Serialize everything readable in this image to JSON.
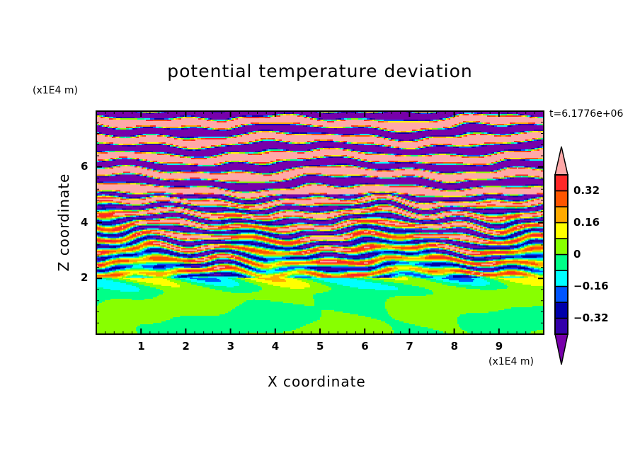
{
  "chart_data": {
    "type": "heatmap",
    "subtype": "filled-contour",
    "title": "potential temperature deviation",
    "xlabel": "X coordinate",
    "ylabel": "Z coordinate",
    "x_unit": "(x1E4 m)",
    "z_unit": "(x1E4 m)",
    "time_label": "t=6.1776e+06",
    "xlim": [
      0,
      10
    ],
    "ylim": [
      0,
      8
    ],
    "x_ticks": [
      "1",
      "2",
      "3",
      "4",
      "5",
      "6",
      "7",
      "8",
      "9"
    ],
    "y_ticks": [
      "2",
      "4",
      "6"
    ],
    "colorbar": {
      "levels": [
        -0.4,
        -0.32,
        -0.24,
        -0.16,
        -0.08,
        0,
        0.08,
        0.16,
        0.24,
        0.32,
        0.4
      ],
      "labels": [
        "0.32",
        "0.16",
        "0",
        "−0.16",
        "−0.32"
      ],
      "label_values": [
        0.32,
        0.16,
        0,
        -0.16,
        -0.32
      ],
      "colors_bottom_to_top": [
        "#3300aa",
        "#0000aa",
        "#0055ff",
        "#00ffff",
        "#00ff88",
        "#88ff00",
        "#ffff00",
        "#ffaa00",
        "#ff5500",
        "#ff2828"
      ],
      "under_color": "#7700aa",
      "over_color": "#ffa8a8",
      "extend": "both"
    }
  }
}
